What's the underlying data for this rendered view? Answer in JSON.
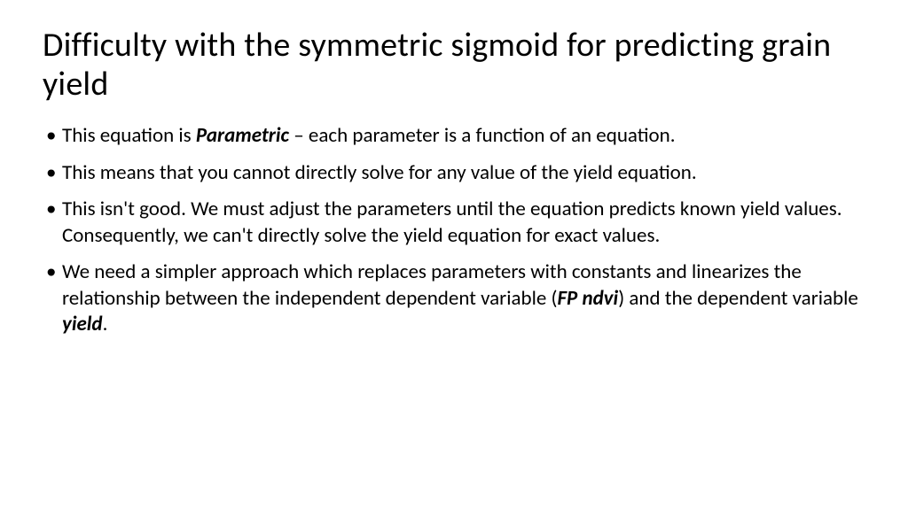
{
  "title": "Difficulty with the symmetric sigmoid for predicting grain yield",
  "b1_pre": "This equation is ",
  "b1_term": "Parametric",
  "b1_post": " – each parameter is a function of an equation.",
  "b2": "This means that you cannot directly solve for any value of the yield equation.",
  "b3": "This isn't good.  We must adjust the parameters until the equation predicts known yield values.  Consequently, we can't directly solve the yield equation  for exact values.",
  "b4_pre": "We need a simpler approach which replaces parameters with constants and linearizes the relationship between the independent dependent variable (",
  "b4_term1": "FP ndvi",
  "b4_mid": ") and the dependent variable ",
  "b4_term2": "yield",
  "b4_post": "."
}
